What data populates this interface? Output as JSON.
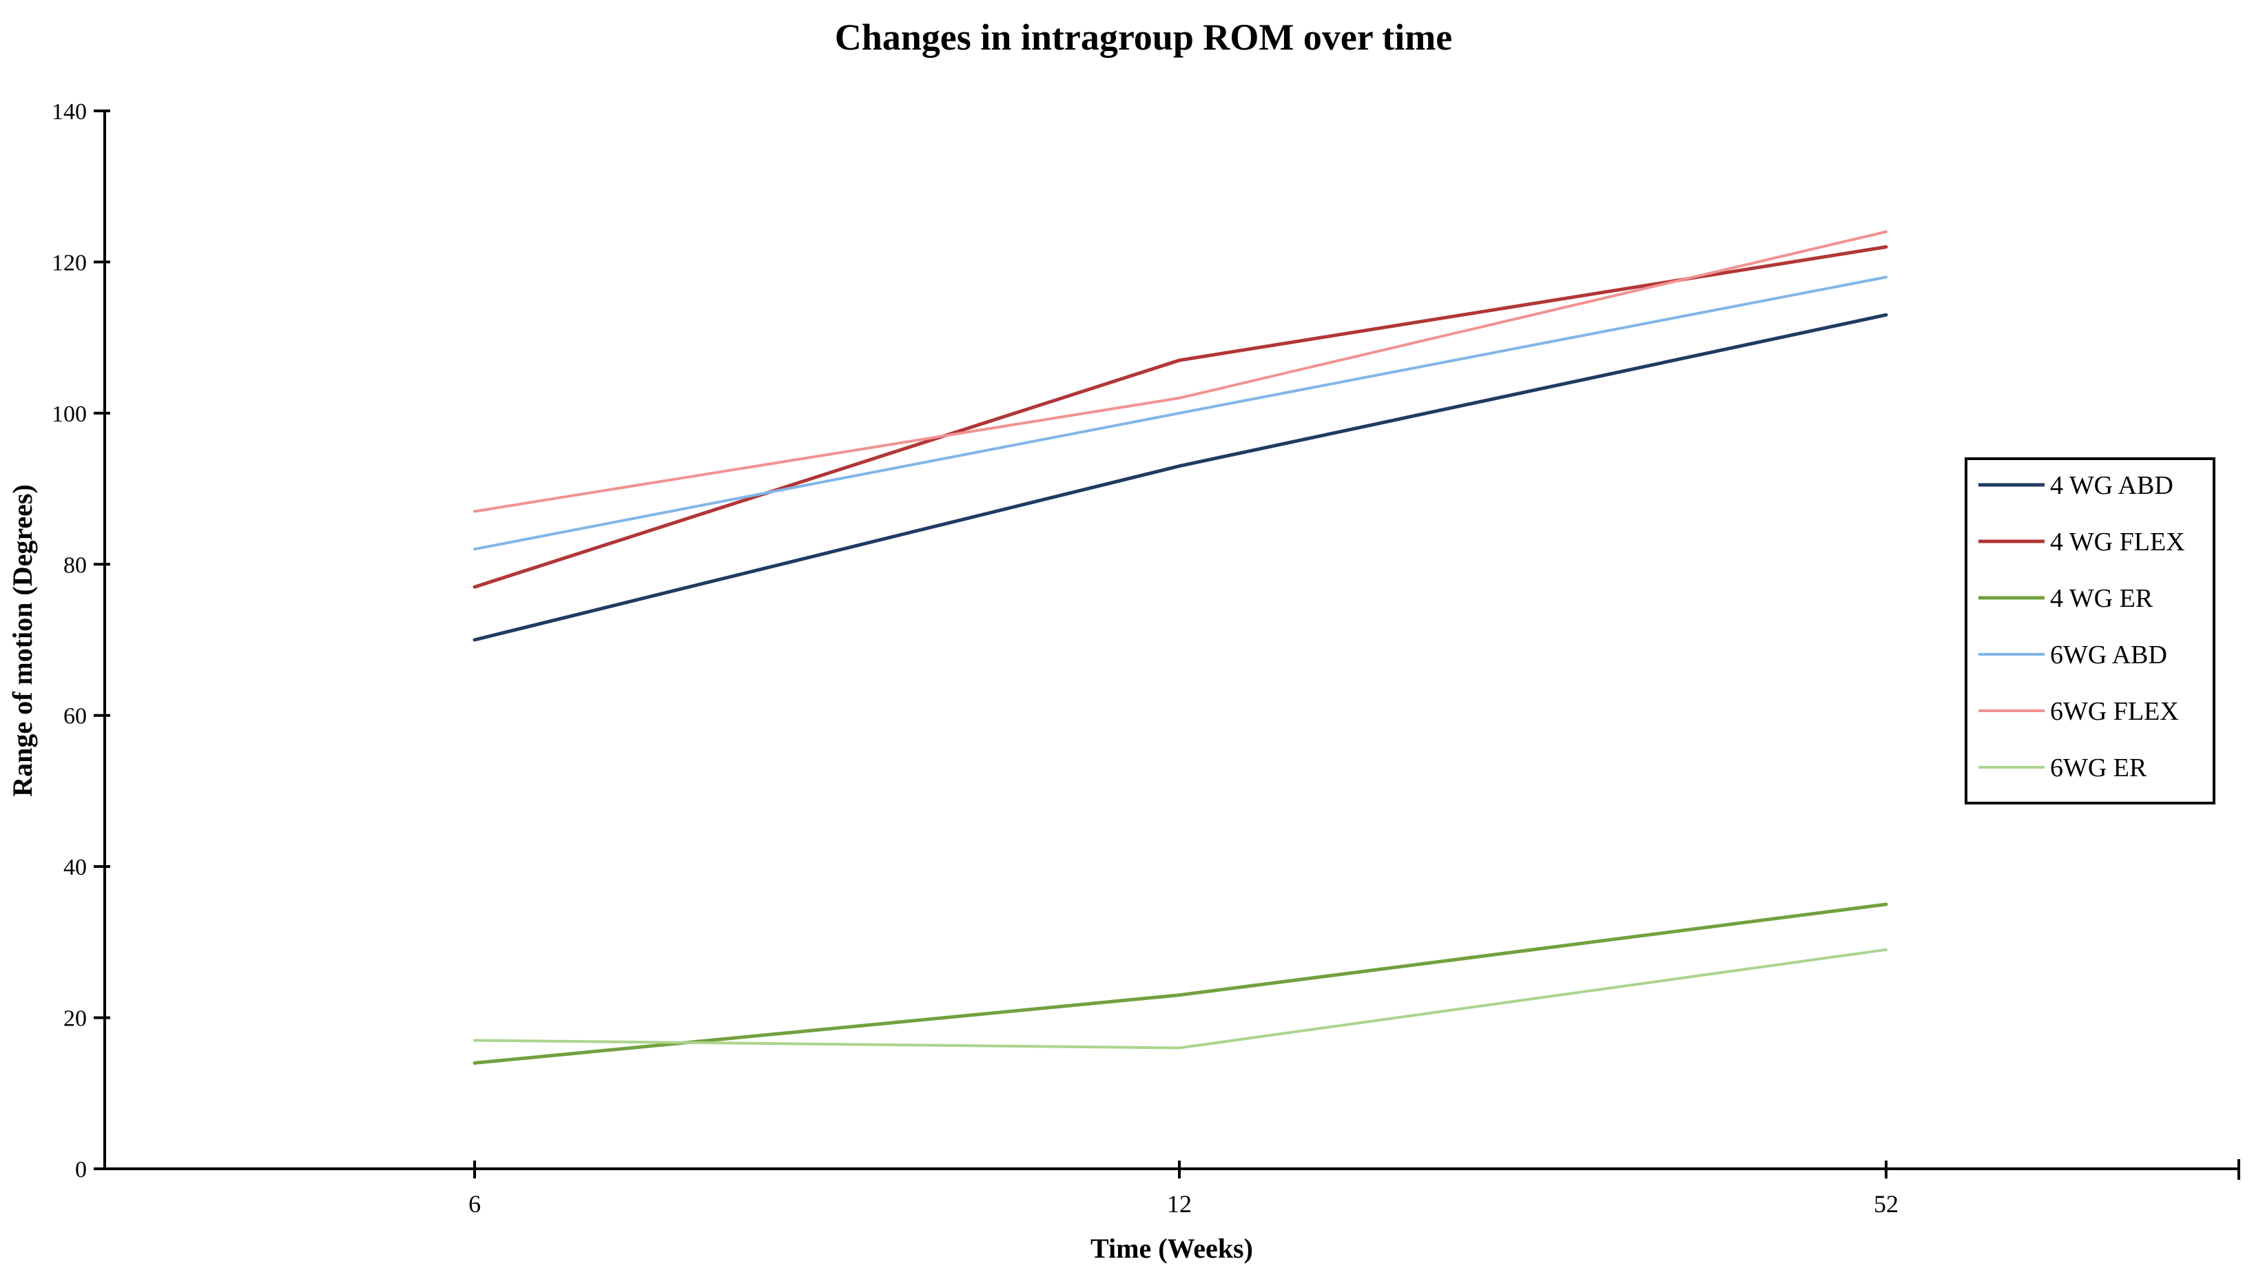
{
  "chart_data": {
    "type": "line",
    "title": "Changes in intragroup ROM over time",
    "xlabel": "Time (Weeks)",
    "ylabel": "Range of motion (Degrees)",
    "categories": [
      "6",
      "12",
      "52"
    ],
    "ylim": [
      0,
      140
    ],
    "ytick_step": 20,
    "ytick_labels": [
      "0",
      "20",
      "40",
      "60",
      "80",
      "100",
      "120",
      "140"
    ],
    "grid": false,
    "legend_position": "right",
    "axis_color": "#000000",
    "background_color": "#ffffff",
    "series": [
      {
        "name": "4 WG ABD",
        "color": "#1F3B63",
        "values": [
          70,
          93,
          113
        ]
      },
      {
        "name": "4 WG FLEX",
        "color": "#B23636",
        "values": [
          77,
          107,
          122
        ]
      },
      {
        "name": "4 WG ER",
        "color": "#71A13D",
        "values": [
          14,
          23,
          35
        ]
      },
      {
        "name": "6WG ABD",
        "color": "#80B6E8",
        "values": [
          82,
          100,
          118
        ]
      },
      {
        "name": "6WG FLEX",
        "color": "#F19292",
        "values": [
          87,
          102,
          124
        ]
      },
      {
        "name": "6WG ER",
        "color": "#ACD48F",
        "values": [
          17,
          16,
          29
        ]
      }
    ]
  }
}
